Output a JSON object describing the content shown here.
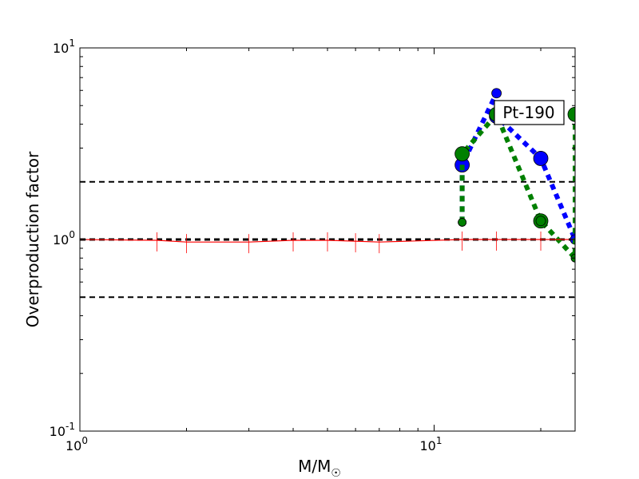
{
  "chart_data": {
    "type": "line",
    "xlabel": "M/M",
    "xlabel_sub": "☉",
    "ylabel": "Overproduction factor",
    "xscale": "log",
    "yscale": "log",
    "xlim": [
      1,
      25
    ],
    "ylim": [
      0.1,
      10
    ],
    "x_ticks": [
      {
        "value": 1,
        "base": "10",
        "exp": "0"
      },
      {
        "value": 10,
        "base": "10",
        "exp": "1"
      }
    ],
    "y_ticks": [
      {
        "value": 0.1,
        "base": "10",
        "exp": "-1"
      },
      {
        "value": 1,
        "base": "10",
        "exp": "0"
      },
      {
        "value": 10,
        "base": "10",
        "exp": "1"
      }
    ],
    "reference_lines": [
      0.5,
      1.0,
      2.0
    ],
    "annotation": "Pt-190",
    "colors": {
      "blue": "#0000ff",
      "green": "#008000",
      "red": "#ff0000",
      "reference": "#000000"
    },
    "series": [
      {
        "color": "#0000ff",
        "style": "dotted",
        "x": [
          12,
          12,
          15,
          15,
          20,
          25
        ],
        "y": [
          1.23,
          2.45,
          5.8,
          4.4,
          2.65,
          1.0
        ]
      },
      {
        "color": "#008000",
        "style": "dotted",
        "x": [
          12,
          12,
          15,
          20,
          20,
          25,
          25
        ],
        "y": [
          1.23,
          2.8,
          4.5,
          1.25,
          1.25,
          0.8,
          4.5
        ]
      },
      {
        "color": "#ff0000",
        "style": "solid",
        "x": [
          1,
          1.65,
          2,
          3,
          4,
          5,
          6,
          7,
          12,
          15,
          20,
          25
        ],
        "y": [
          1.0,
          0.99,
          0.97,
          0.97,
          0.99,
          0.99,
          0.98,
          0.97,
          1.0,
          1.0,
          1.0,
          1.0
        ]
      }
    ]
  }
}
